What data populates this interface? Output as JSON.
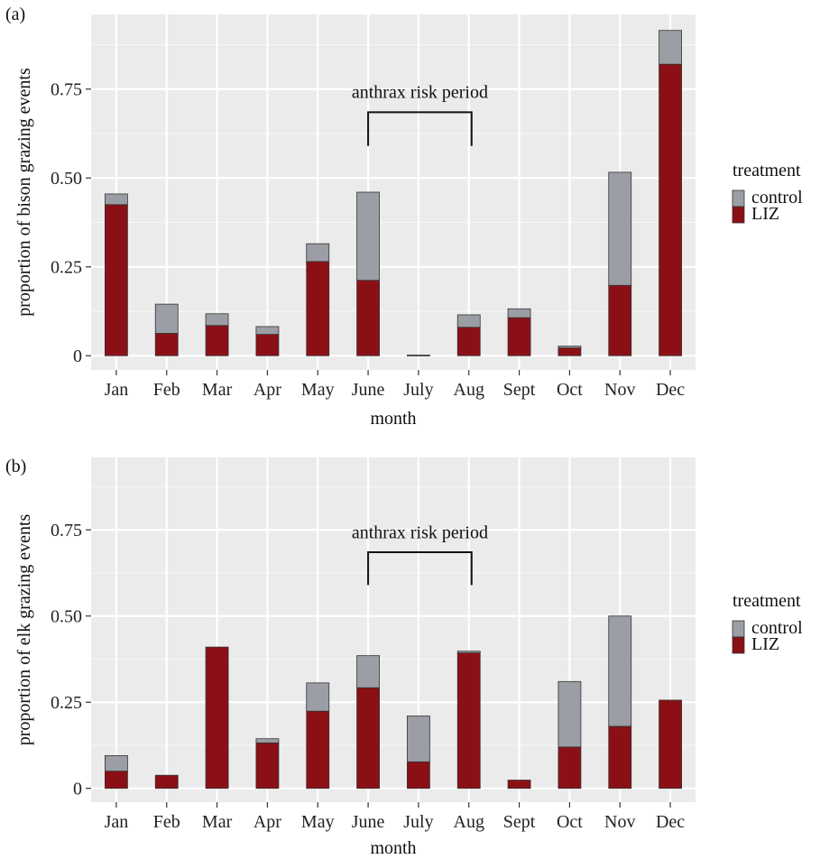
{
  "colors": {
    "control": "#9b9ea4",
    "LIZ": "#8b1016"
  },
  "chart_data": [
    {
      "type": "bar",
      "stacked": true,
      "panel_label": "(a)",
      "xlabel": "month",
      "ylabel": "proportion of bison grazing events",
      "categories": [
        "Jan",
        "Feb",
        "Mar",
        "Apr",
        "May",
        "June",
        "July",
        "Aug",
        "Sept",
        "Oct",
        "Nov",
        "Dec"
      ],
      "yticks": [
        0,
        0.25,
        0.5,
        0.75
      ],
      "ytick_labels": [
        "0",
        "0.25",
        "0.50",
        "0.75"
      ],
      "ylim": [
        -0.04,
        0.96
      ],
      "grid": true,
      "legend": {
        "title": "treatment",
        "position": "right",
        "entries": [
          "control",
          "LIZ"
        ]
      },
      "annotation": {
        "text": "anthrax risk period",
        "from": "June",
        "to": "Aug"
      },
      "series": [
        {
          "name": "LIZ",
          "values": [
            0.425,
            0.063,
            0.085,
            0.06,
            0.265,
            0.212,
            0.0,
            0.08,
            0.107,
            0.022,
            0.198,
            0.82
          ]
        },
        {
          "name": "control",
          "values": [
            0.03,
            0.082,
            0.033,
            0.022,
            0.05,
            0.248,
            0.002,
            0.035,
            0.025,
            0.005,
            0.318,
            0.095
          ]
        }
      ]
    },
    {
      "type": "bar",
      "stacked": true,
      "panel_label": "(b)",
      "xlabel": "month",
      "ylabel": "proportion of elk grazing events",
      "categories": [
        "Jan",
        "Feb",
        "Mar",
        "Apr",
        "May",
        "June",
        "July",
        "Aug",
        "Sept",
        "Oct",
        "Nov",
        "Dec"
      ],
      "yticks": [
        0,
        0.25,
        0.5,
        0.75
      ],
      "ytick_labels": [
        "0",
        "0.25",
        "0.50",
        "0.75"
      ],
      "ylim": [
        -0.04,
        0.96
      ],
      "grid": true,
      "legend": {
        "title": "treatment",
        "position": "right",
        "entries": [
          "control",
          "LIZ"
        ]
      },
      "annotation": {
        "text": "anthrax risk period",
        "from": "June",
        "to": "Aug"
      },
      "series": [
        {
          "name": "LIZ",
          "values": [
            0.05,
            0.038,
            0.41,
            0.132,
            0.224,
            0.292,
            0.077,
            0.393,
            0.024,
            0.12,
            0.18,
            0.256
          ]
        },
        {
          "name": "control",
          "values": [
            0.045,
            0.0,
            0.0,
            0.012,
            0.082,
            0.093,
            0.133,
            0.005,
            0.0,
            0.19,
            0.32,
            0.0
          ]
        }
      ]
    }
  ]
}
